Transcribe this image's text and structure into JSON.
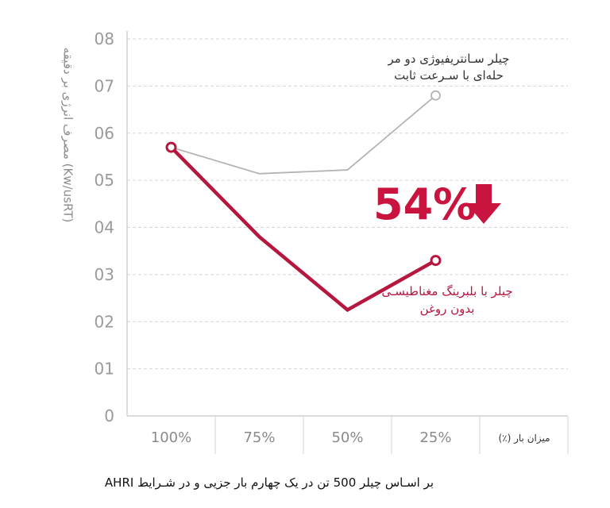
{
  "chart_data": {
    "type": "line",
    "categories": [
      "100%",
      "75%",
      "50%",
      "25%"
    ],
    "x_categories_extra_slot": true,
    "series": [
      {
        "name": "چیلر سـانتریفیوژی دو مر حله‌ای با سـرعت ثابت",
        "values": [
          0.57,
          0.514,
          0.522,
          0.68
        ],
        "color": "#b4b4b4"
      },
      {
        "name": "چیلر با بلبرینگ مغناطیسـی بدون روغن",
        "values": [
          0.57,
          0.38,
          0.225,
          0.33
        ],
        "color": "#b5173f"
      }
    ],
    "ylim": [
      0,
      0.8
    ],
    "y_tick_labels": [
      "0",
      "01",
      "02",
      "03",
      "04",
      "05",
      "06",
      "07",
      "08"
    ],
    "ylabel": "مصرف انرژی بر دقیقه (Kw/usRT)",
    "xlabel": "میزان بار (٪)",
    "grid": "horizontal-dashed",
    "legend": "inline-annotations"
  },
  "annotations": {
    "gray_line1": "چیلر سـانتریفیوژی دو مر",
    "gray_line2": "حله‌ای با سـرعت ثابت",
    "red_line1": "چیلر با بلبرینگ مغناطیسـی",
    "red_line2": "بدون روغن",
    "reduction": "54%",
    "reduction_icon": "down-arrow-icon"
  },
  "caption": "بر اسـاس چیلر 500 تن در یک چهارم بار جزیی و در شـرایط AHRI",
  "colors": {
    "accent": "#c8143f",
    "grid": "#d6d6d6",
    "axis": "#c8c8c8",
    "gray_series": "#b4b4b4",
    "red_series": "#b5173f"
  }
}
